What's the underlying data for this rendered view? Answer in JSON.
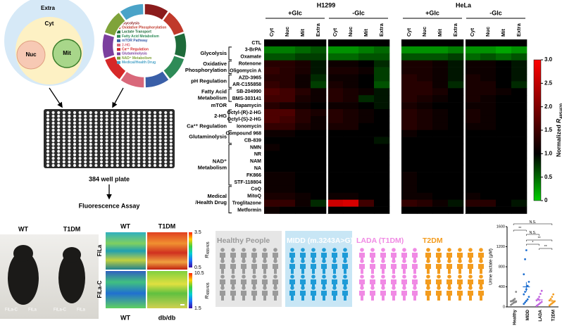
{
  "diagram": {
    "compartments": {
      "extra": "Extra",
      "cyt": "Cyt",
      "nuc": "Nuc",
      "mit": "Mit"
    },
    "categories": [
      {
        "name": "Glycolysis",
        "color": "#8b1c1c"
      },
      {
        "name": "Oxidative Phosphorylation",
        "color": "#c0392b"
      },
      {
        "name": "Lactate Transport",
        "color": "#1e6b3a"
      },
      {
        "name": "Fatty Acid Metabolism",
        "color": "#2e8b57"
      },
      {
        "name": "mTOR Pathway",
        "color": "#3a5fa8"
      },
      {
        "name": "2-HG",
        "color": "#d9687a"
      },
      {
        "name": "Ca²⁺ Regulation",
        "color": "#d62828"
      },
      {
        "name": "Glutaminolysis",
        "color": "#7b3f9e"
      },
      {
        "name": "NAD⁺ Metabolism",
        "color": "#7fa33a"
      },
      {
        "name": "Medical/Health Drug",
        "color": "#4aa3c8"
      }
    ],
    "plate": "384 well plate",
    "assay": "Fluorescence Assay"
  },
  "heatmap": {
    "type": "heatmap",
    "cell_lines": [
      "H1299",
      "HeLa"
    ],
    "conditions": [
      "+Glc",
      "-Glc"
    ],
    "compartments": [
      "Cyt",
      "Nuc",
      "Mit",
      "Extra"
    ],
    "row_groups": [
      {
        "rows": [
          "CTL"
        ],
        "values": [
          [
            1,
            1,
            1,
            1,
            1,
            1,
            1,
            1,
            1,
            1,
            1,
            1,
            1,
            1,
            1,
            1
          ]
        ]
      },
      {
        "label": [
          "Glycolysis"
        ],
        "rows": [
          "3-BrPA",
          "Oxamate"
        ],
        "values": [
          [
            0.4,
            0.4,
            0.5,
            0.6,
            0.3,
            0.3,
            0.4,
            0.5,
            0.3,
            0.3,
            0.3,
            0.4,
            0.3,
            0.3,
            0.2,
            0.3
          ],
          [
            0.6,
            0.6,
            0.7,
            0.7,
            0.5,
            0.5,
            0.6,
            0.6,
            0.6,
            0.6,
            0.6,
            0.7,
            0.5,
            0.6,
            0.5,
            0.6
          ]
        ]
      },
      {
        "label": [
          "Oxidative",
          "Phosphorylation"
        ],
        "rows": [
          "Rotenone",
          "Oligomycin A"
        ],
        "values": [
          [
            1.3,
            1.3,
            1.2,
            0.9,
            1.1,
            1.1,
            1,
            0.8,
            1.2,
            1.2,
            1.1,
            0.9,
            1.1,
            1.1,
            1,
            0.9
          ],
          [
            1.4,
            1.3,
            1.2,
            0.9,
            1.2,
            1.2,
            1.1,
            0.7,
            1.2,
            1.2,
            1.1,
            0.9,
            1.1,
            1.1,
            1,
            0.9
          ]
        ]
      },
      {
        "label": [
          "pH Regulation"
        ],
        "rows": [
          "AZD-3965",
          "AR-C155858"
        ],
        "values": [
          [
            1.3,
            1.3,
            1.1,
            0.8,
            1.1,
            1.1,
            1,
            0.7,
            1.3,
            1.2,
            1.1,
            0.9,
            1.2,
            1.1,
            1,
            0.9
          ],
          [
            1.4,
            1.3,
            1.1,
            0.7,
            1.2,
            1.1,
            1,
            0.6,
            1.3,
            1.3,
            1.1,
            0.8,
            1.2,
            1.2,
            1,
            0.8
          ]
        ]
      },
      {
        "label": [
          "Fatty Acid",
          "Metabolism"
        ],
        "rows": [
          "SB-204990",
          "BMS-303141"
        ],
        "values": [
          [
            1.6,
            1.5,
            1.3,
            1.1,
            1.3,
            1.2,
            1.1,
            0.9,
            1.3,
            1.3,
            1.2,
            1,
            1.2,
            1.2,
            1.1,
            1
          ],
          [
            1.5,
            1.5,
            1.2,
            1.1,
            1.3,
            1.2,
            0.8,
            0.9,
            1.3,
            1.2,
            1.1,
            1,
            1.2,
            1.1,
            1,
            1
          ]
        ]
      },
      {
        "label": [
          "mTOR"
        ],
        "rows": [
          "Rapamycin"
        ],
        "values": [
          [
            1.3,
            1.2,
            1.1,
            1,
            1.1,
            1.1,
            1,
            0.9,
            1.2,
            1.1,
            1,
            1,
            1.1,
            1.1,
            1,
            1
          ]
        ]
      },
      {
        "label": [
          "2-HG"
        ],
        "rows": [
          "Octyl-(R)-2-HG",
          "Octyl-(S)-2-HG"
        ],
        "values": [
          [
            1.6,
            1.6,
            1.3,
            1.2,
            1.3,
            1.2,
            1.1,
            1,
            1.3,
            1.2,
            1.1,
            1,
            1.2,
            1.1,
            1,
            1
          ],
          [
            1.6,
            1.5,
            1.3,
            1.1,
            1.3,
            1.2,
            1.1,
            1,
            1.3,
            1.2,
            1.1,
            1,
            1.2,
            1.1,
            1,
            1
          ]
        ]
      },
      {
        "label": [
          "Ca²⁺ Regulation"
        ],
        "rows": [
          "Ionomycin"
        ],
        "values": [
          [
            1.4,
            1.4,
            1.2,
            1.1,
            1.2,
            1.2,
            1,
            1,
            1.3,
            1.2,
            1.1,
            1,
            1.1,
            1.1,
            1,
            1
          ]
        ]
      },
      {
        "label": [
          "Glutaminolysis"
        ],
        "rows": [
          "Compound 968",
          "CB-839"
        ],
        "values": [
          [
            1.1,
            1.1,
            1,
            1,
            1,
            1,
            1,
            1,
            1.1,
            1,
            1,
            1,
            1,
            1,
            1,
            1
          ],
          [
            1,
            1,
            1,
            1,
            1,
            1,
            1,
            0.9,
            1,
            1,
            1,
            1,
            1,
            1,
            1,
            1
          ]
        ]
      },
      {
        "label": [
          "NAD⁺",
          "Metabolism"
        ],
        "rows": [
          "NMN",
          "NR",
          "NAM",
          "NA",
          "FK866",
          "STF-118804"
        ],
        "values": [
          [
            1.1,
            1,
            1,
            1,
            1,
            1,
            1,
            1,
            1,
            1,
            1,
            1,
            1,
            1,
            1,
            1
          ],
          [
            1,
            1,
            1,
            1,
            1,
            1,
            1,
            1,
            1,
            1,
            1,
            1,
            1,
            1,
            1,
            1
          ],
          [
            1,
            1,
            1,
            1,
            1,
            1,
            1,
            1,
            1,
            1,
            1,
            1,
            1,
            1,
            1,
            1
          ],
          [
            1,
            1,
            1,
            1,
            1,
            1,
            1,
            1,
            1,
            1,
            1,
            1,
            1,
            1,
            1,
            1
          ],
          [
            1.1,
            1.1,
            1,
            1,
            1,
            1,
            1,
            1,
            1.1,
            1,
            1,
            1,
            1,
            1,
            1,
            1
          ],
          [
            1.1,
            1.1,
            1,
            1,
            1,
            1,
            1,
            1,
            1.1,
            1,
            1,
            1,
            1,
            1,
            1,
            1
          ]
        ]
      },
      {
        "label": [
          "Medical",
          "/Health Drug"
        ],
        "rows": [
          "CoQ",
          "MitoQ",
          "Troglitazone",
          "Metformin"
        ],
        "values": [
          [
            1.1,
            1.1,
            1,
            1,
            1,
            1,
            1,
            1,
            1.1,
            1,
            1,
            1,
            1,
            1,
            1,
            1
          ],
          [
            1.2,
            1.2,
            1.1,
            1,
            1.1,
            1.1,
            1,
            1,
            1.1,
            1.1,
            1,
            1,
            1.1,
            1,
            1,
            1
          ],
          [
            1.4,
            1.4,
            1.1,
            0.8,
            2.6,
            2.7,
            1.5,
            1,
            1.4,
            1.3,
            1.1,
            0.9,
            1.3,
            1.3,
            1,
            0.9
          ],
          [
            1.1,
            1,
            1,
            1,
            1,
            1,
            1,
            1,
            1,
            1,
            1,
            1,
            1,
            1,
            1,
            1
          ]
        ]
      }
    ],
    "colorbar": {
      "label": "Normalized",
      "symbol": "R",
      "subscript": "485/420",
      "lim": [
        0,
        3
      ],
      "center": 1,
      "colors": [
        "#00d000",
        "#000000",
        "#ff0000"
      ],
      "ticks": [
        0,
        0.5,
        {
          "value": 1,
          "label": "1.0"
        },
        1.5,
        {
          "value": 2,
          "label": "2.0"
        },
        2.5,
        {
          "value": 3,
          "label": "3.0"
        }
      ]
    }
  },
  "mice": {
    "groups": [
      "WT",
      "T1DM"
    ],
    "implants": [
      "FiLa-C",
      "FiLa"
    ]
  },
  "imaging": {
    "columns_top": [
      "WT",
      "T1DM"
    ],
    "columns_bottom": [
      "WT",
      "db/db"
    ],
    "rows": [
      "FiLa",
      "FiLa-C"
    ],
    "symbol": "R",
    "subscript": "488/405",
    "scales": [
      {
        "ticks": [
          0.5,
          3.5
        ]
      },
      {
        "ticks": [
          1.5,
          10.5
        ]
      }
    ]
  },
  "cohorts": {
    "groups": [
      {
        "name": "Healthy People",
        "color": "#9a9a9a"
      },
      {
        "name": "MIDD (m.3243A>G)",
        "color": "#1e9bd7"
      },
      {
        "name": "LADA (T1DM)",
        "color": "#f08ae4"
      },
      {
        "name": "T2DM",
        "color": "#f39c1e"
      }
    ]
  },
  "chart_data": {
    "type": "scatter",
    "y_label": "Urine lactate (μM)",
    "categories": [
      "Healthy",
      "MIDD",
      "LADA",
      "T2DM"
    ],
    "groups": [
      {
        "color": "#888888",
        "values": [
          40,
          60,
          80,
          90,
          100,
          110,
          120,
          140,
          160,
          300
        ],
        "mean": 120,
        "error": 25
      },
      {
        "color": "#1e6fd0",
        "values": [
          60,
          90,
          120,
          150,
          200,
          250,
          300,
          350,
          420,
          500,
          650,
          950,
          1130
        ],
        "mean": 400,
        "error": 95
      },
      {
        "color": "#c266e0",
        "values": [
          20,
          40,
          60,
          80,
          100,
          130,
          160,
          200,
          260,
          320
        ],
        "mean": 140,
        "error": 30
      },
      {
        "color": "#f39c1e",
        "values": [
          30,
          50,
          70,
          90,
          110,
          130,
          160,
          200,
          250
        ],
        "mean": 120,
        "error": 25
      }
    ],
    "ylim": [
      0,
      1600
    ],
    "yticks": [
      0,
      400,
      800,
      1200,
      1600
    ],
    "significance": [
      "N.S.",
      "**",
      "N.S.",
      "**",
      "*",
      "**"
    ]
  }
}
